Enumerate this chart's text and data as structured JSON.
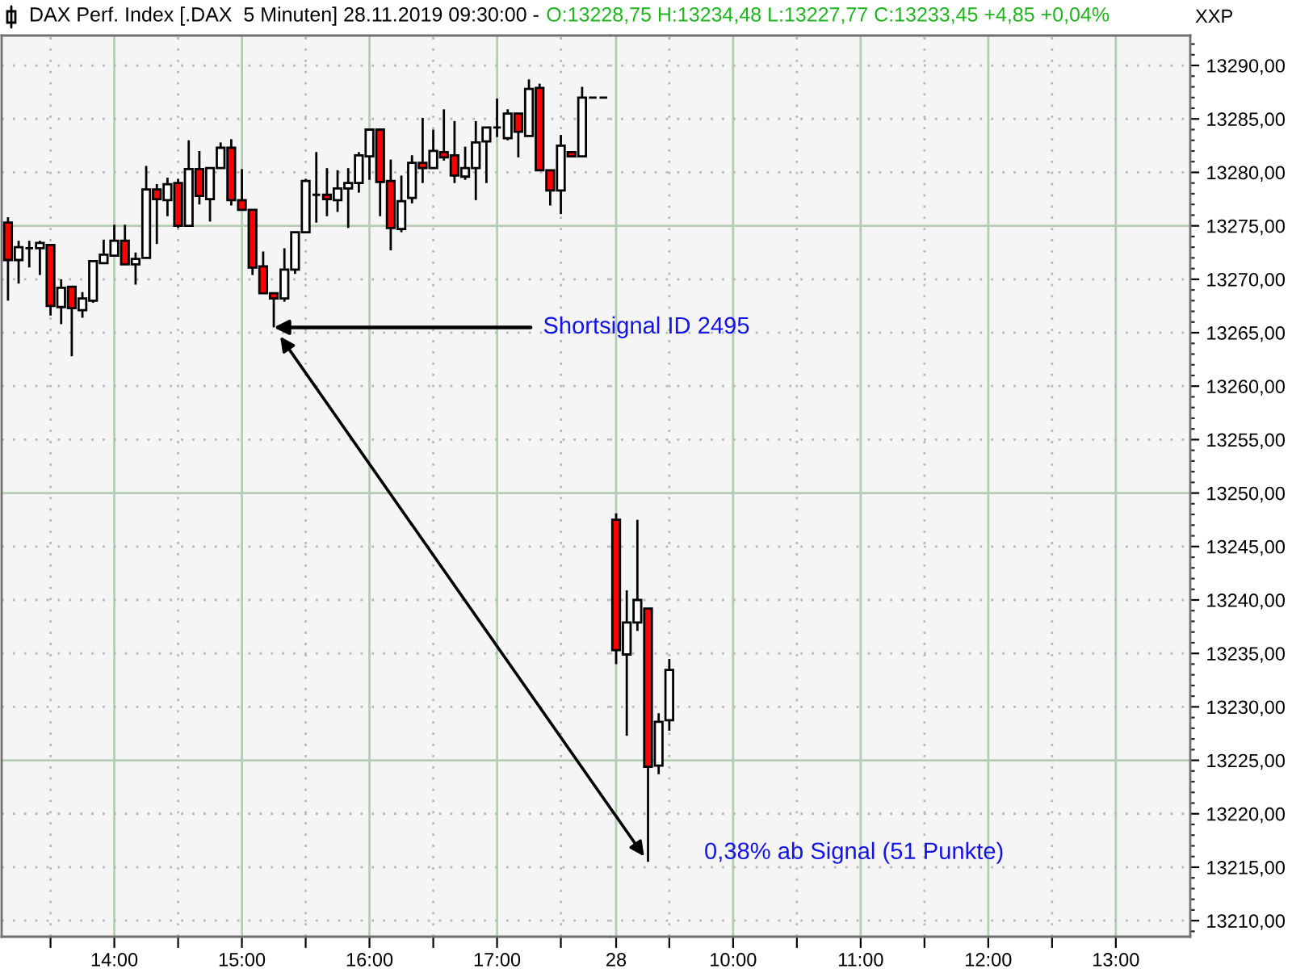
{
  "chart_data": [
    {
      "type": "candlestick",
      "title": "DAX Perf. Index [.DAX  5 Minuten] 28.11.2019 09:30:00 -",
      "x": [
        "2019-11-27T13:10",
        "2019-11-27T13:15",
        "2019-11-27T13:20",
        "2019-11-27T13:25",
        "2019-11-27T13:30",
        "2019-11-27T13:35",
        "2019-11-27T13:40",
        "2019-11-27T13:45",
        "2019-11-27T13:50",
        "2019-11-27T13:55",
        "2019-11-27T14:00",
        "2019-11-27T14:05",
        "2019-11-27T14:10",
        "2019-11-27T14:15",
        "2019-11-27T14:20",
        "2019-11-27T14:25",
        "2019-11-27T14:30",
        "2019-11-27T14:35",
        "2019-11-27T14:40",
        "2019-11-27T14:45",
        "2019-11-27T14:50",
        "2019-11-27T14:55",
        "2019-11-27T15:00",
        "2019-11-27T15:05",
        "2019-11-27T15:10",
        "2019-11-27T15:15",
        "2019-11-27T15:20",
        "2019-11-27T15:25",
        "2019-11-27T15:30",
        "2019-11-27T15:35",
        "2019-11-27T15:40",
        "2019-11-27T15:45",
        "2019-11-27T15:50",
        "2019-11-27T15:55",
        "2019-11-27T16:00",
        "2019-11-27T16:05",
        "2019-11-27T16:10",
        "2019-11-27T16:15",
        "2019-11-27T16:20",
        "2019-11-27T16:25",
        "2019-11-27T16:30",
        "2019-11-27T16:35",
        "2019-11-27T16:40",
        "2019-11-27T16:45",
        "2019-11-27T16:50",
        "2019-11-27T16:55",
        "2019-11-27T17:00",
        "2019-11-27T17:05",
        "2019-11-27T17:10",
        "2019-11-27T17:15",
        "2019-11-27T17:20",
        "2019-11-27T17:25",
        "2019-11-27T17:30",
        "2019-11-27T17:35",
        "2019-11-27T17:40",
        "2019-11-27T17:45",
        "2019-11-27T17:50"
      ],
      "ohlc": [
        [
          13275.3,
          13275.8,
          13268.0,
          13271.8
        ],
        [
          13271.8,
          13273.6,
          13269.6,
          13273.0
        ],
        [
          13272.9,
          13273.6,
          13271.1,
          13272.9
        ],
        [
          13272.9,
          13273.6,
          13270.4,
          13273.4
        ],
        [
          13273.2,
          13273.2,
          13266.6,
          13267.5
        ],
        [
          13267.4,
          13270.0,
          13265.8,
          13269.2
        ],
        [
          13269.3,
          13269.3,
          13262.8,
          13267.3
        ],
        [
          13267.1,
          13268.8,
          13266.4,
          13268.2
        ],
        [
          13268.0,
          13271.7,
          13267.8,
          13271.7
        ],
        [
          13271.5,
          13273.7,
          13271.5,
          13272.3
        ],
        [
          13272.2,
          13275.1,
          13272.2,
          13273.6
        ],
        [
          13273.6,
          13275.1,
          13271.4,
          13271.4
        ],
        [
          13271.4,
          13272.5,
          13269.5,
          13271.9
        ],
        [
          13272.0,
          13280.6,
          13272.0,
          13278.4
        ],
        [
          13278.4,
          13278.9,
          13273.3,
          13277.5
        ],
        [
          13277.4,
          13279.5,
          13275.9,
          13278.9
        ],
        [
          13279.0,
          13279.4,
          13274.8,
          13275.0
        ],
        [
          13275.0,
          13283.0,
          13275.0,
          13280.3
        ],
        [
          13280.3,
          13282.0,
          13277.0,
          13277.8
        ],
        [
          13277.5,
          13280.4,
          13275.4,
          13280.4
        ],
        [
          13280.4,
          13282.8,
          13280.4,
          13282.3
        ],
        [
          13282.3,
          13283.1,
          13276.9,
          13277.4
        ],
        [
          13277.4,
          13280.3,
          13276.5,
          13276.5
        ],
        [
          13276.5,
          13276.5,
          13270.4,
          13271.1
        ],
        [
          13271.2,
          13272.6,
          13268.7,
          13268.7
        ],
        [
          13268.7,
          13268.7,
          13265.5,
          13268.2
        ],
        [
          13268.2,
          13272.9,
          13267.9,
          13270.9
        ],
        [
          13270.9,
          13274.4,
          13270.5,
          13274.4
        ],
        [
          13274.4,
          13279.4,
          13274.4,
          13279.2
        ],
        [
          13277.9,
          13281.9,
          13275.3,
          13277.9
        ],
        [
          13277.9,
          13280.4,
          13275.9,
          13277.5
        ],
        [
          13277.4,
          13280.2,
          13276.3,
          13278.5
        ],
        [
          13278.5,
          13280.4,
          13274.8,
          13279.0
        ],
        [
          13279.0,
          13281.9,
          13278.1,
          13281.6
        ],
        [
          13281.5,
          13284.0,
          13279.3,
          13284.0
        ],
        [
          13284.0,
          13284.0,
          13275.9,
          13279.1
        ],
        [
          13279.2,
          13281.2,
          13272.7,
          13274.8
        ],
        [
          13274.7,
          13279.7,
          13274.4,
          13277.3
        ],
        [
          13277.6,
          13281.6,
          13277.1,
          13280.9
        ],
        [
          13280.9,
          13285.1,
          13279.0,
          13280.4
        ],
        [
          13280.4,
          13284.0,
          13280.4,
          13282.0
        ],
        [
          13281.9,
          13285.9,
          13281.1,
          13281.4
        ],
        [
          13281.6,
          13284.8,
          13279.0,
          13279.7
        ],
        [
          13279.6,
          13282.4,
          13279.3,
          13280.4
        ],
        [
          13280.4,
          13284.8,
          13277.4,
          13282.8
        ],
        [
          13282.9,
          13284.2,
          13279.0,
          13284.2
        ],
        [
          13284.2,
          13286.9,
          13283.3,
          13284.2
        ],
        [
          13283.2,
          13285.9,
          13283.0,
          13285.5
        ],
        [
          13285.5,
          13285.5,
          13281.4,
          13283.8
        ],
        [
          13283.4,
          13288.7,
          13283.4,
          13287.8
        ],
        [
          13287.9,
          13288.3,
          13280.2,
          13280.2
        ],
        [
          13280.2,
          13280.2,
          13276.9,
          13278.3
        ],
        [
          13278.3,
          13283.5,
          13276.1,
          13282.5
        ],
        [
          13281.9,
          13281.9,
          13281.5,
          13281.5
        ],
        [
          13281.5,
          13288.0,
          13281.4,
          13287.0
        ],
        [
          13287.0,
          13287.0,
          13287.0,
          13287.0
        ],
        [
          13287.0,
          13287.0,
          13287.0,
          13287.0
        ]
      ],
      "colors": [
        "#ff0000",
        "#ffffff",
        "#000000",
        "#ffffff",
        "#ff0000",
        "#ffffff",
        "#ff0000",
        "#ffffff",
        "#ffffff",
        "#ffffff",
        "#ffffff",
        "#ff0000",
        "#ffffff",
        "#ffffff",
        "#ff0000",
        "#ffffff",
        "#ff0000",
        "#ffffff",
        "#ff0000",
        "#ffffff",
        "#ffffff",
        "#ff0000",
        "#ff0000",
        "#ff0000",
        "#ff0000",
        "#ff0000",
        "#ffffff",
        "#ffffff",
        "#ffffff",
        "#000000",
        "#ff0000",
        "#ffffff",
        "#ffffff",
        "#ffffff",
        "#ffffff",
        "#ff0000",
        "#ff0000",
        "#ffffff",
        "#ffffff",
        "#ff0000",
        "#ffffff",
        "#ff0000",
        "#ff0000",
        "#ffffff",
        "#ffffff",
        "#ffffff",
        "#000000",
        "#ffffff",
        "#ff0000",
        "#ffffff",
        "#ff0000",
        "#ff0000",
        "#ffffff",
        "#ff0000",
        "#ffffff",
        "#000000",
        "#000000"
      ],
      "xlim": [
        "2019-11-27T13:07",
        "2019-11-27T17:53"
      ],
      "xticks": [
        {
          "value": "2019-11-27T13:30",
          "label": null
        },
        {
          "value": "2019-11-27T14:00",
          "label": "14:00"
        },
        {
          "value": "2019-11-27T14:30",
          "label": null
        },
        {
          "value": "2019-11-27T15:00",
          "label": "15:00"
        },
        {
          "value": "2019-11-27T15:30",
          "label": null
        },
        {
          "value": "2019-11-27T16:00",
          "label": "16:00"
        },
        {
          "value": "2019-11-27T16:30",
          "label": null
        },
        {
          "value": "2019-11-27T17:00",
          "label": "17:00"
        },
        {
          "value": "2019-11-27T17:30",
          "label": null
        }
      ],
      "ylim": [
        13208.5,
        13292.8
      ],
      "yticks": [
        13210,
        13215,
        13220,
        13225,
        13230,
        13235,
        13240,
        13245,
        13250,
        13255,
        13260,
        13265,
        13270,
        13275,
        13280,
        13285,
        13290
      ],
      "tick_labels": "x",
      "grid": true,
      "annotations": [
        {
          "text": "Shortsignal ID 2495",
          "x": "2019-11-27T15:15",
          "y": 13265.5
        }
      ]
    },
    {
      "type": "candlestick",
      "subtitle": "O:13228,75 H:13234,48 L:13227,77 C:13233,45 +4,85 +0,04%",
      "x": [
        "2019-11-28T09:05",
        "2019-11-28T09:10",
        "2019-11-28T09:15",
        "2019-11-28T09:20",
        "2019-11-28T09:25",
        "2019-11-28T09:30"
      ],
      "ohlc": [
        [
          13247.5,
          13248.1,
          13234.0,
          13235.3
        ],
        [
          13234.9,
          13240.9,
          13227.3,
          13237.9
        ],
        [
          13237.9,
          13247.5,
          13237.1,
          13240.0
        ],
        [
          13239.2,
          13239.2,
          13215.5,
          13224.4
        ],
        [
          13224.5,
          13229.4,
          13223.7,
          13228.6
        ],
        [
          13228.75,
          13234.48,
          13227.77,
          13233.45
        ]
      ],
      "colors": [
        "#ff0000",
        "#ffffff",
        "#ffffff",
        "#ff0000",
        "#ffffff",
        "#ffffff"
      ],
      "xlim": [
        "2019-11-28T09:02",
        "2019-11-28T13:35"
      ],
      "xticks": [
        {
          "value": "2019-11-28T09:05",
          "label": "28"
        },
        {
          "value": "2019-11-28T09:30",
          "label": null
        },
        {
          "value": "2019-11-28T10:00",
          "label": "10:00"
        },
        {
          "value": "2019-11-28T10:30",
          "label": null
        },
        {
          "value": "2019-11-28T11:00",
          "label": "11:00"
        },
        {
          "value": "2019-11-28T11:30",
          "label": null
        },
        {
          "value": "2019-11-28T12:00",
          "label": "12:00"
        },
        {
          "value": "2019-11-28T12:30",
          "label": null
        },
        {
          "value": "2019-11-28T13:00",
          "label": "13:00"
        }
      ],
      "ylim": [
        13208.5,
        13292.8
      ],
      "yticks": [
        {
          "value": 13210,
          "label": "13210,00"
        },
        {
          "value": 13215,
          "label": "13215,00"
        },
        {
          "value": 13220,
          "label": "13220,00"
        },
        {
          "value": 13225,
          "label": "13225,00"
        },
        {
          "value": 13230,
          "label": "13230,00"
        },
        {
          "value": 13235,
          "label": "13235,00"
        },
        {
          "value": 13240,
          "label": "13240,00"
        },
        {
          "value": 13245,
          "label": "13245,00"
        },
        {
          "value": 13250,
          "label": "13250,00"
        },
        {
          "value": 13255,
          "label": "13255,00"
        },
        {
          "value": 13260,
          "label": "13260,00"
        },
        {
          "value": 13265,
          "label": "13265,00"
        },
        {
          "value": 13270,
          "label": "13270,00"
        },
        {
          "value": 13275,
          "label": "13275,00"
        },
        {
          "value": 13280,
          "label": "13280,00"
        },
        {
          "value": 13285,
          "label": "13285,00"
        },
        {
          "value": 13290,
          "label": "13290,00"
        }
      ],
      "grid": true,
      "annotations": [
        {
          "text": "0,38% ab Signal (51 Punkte)",
          "x": "2019-11-28T09:20",
          "y": 13215.5
        },
        "XXP"
      ]
    }
  ]
}
